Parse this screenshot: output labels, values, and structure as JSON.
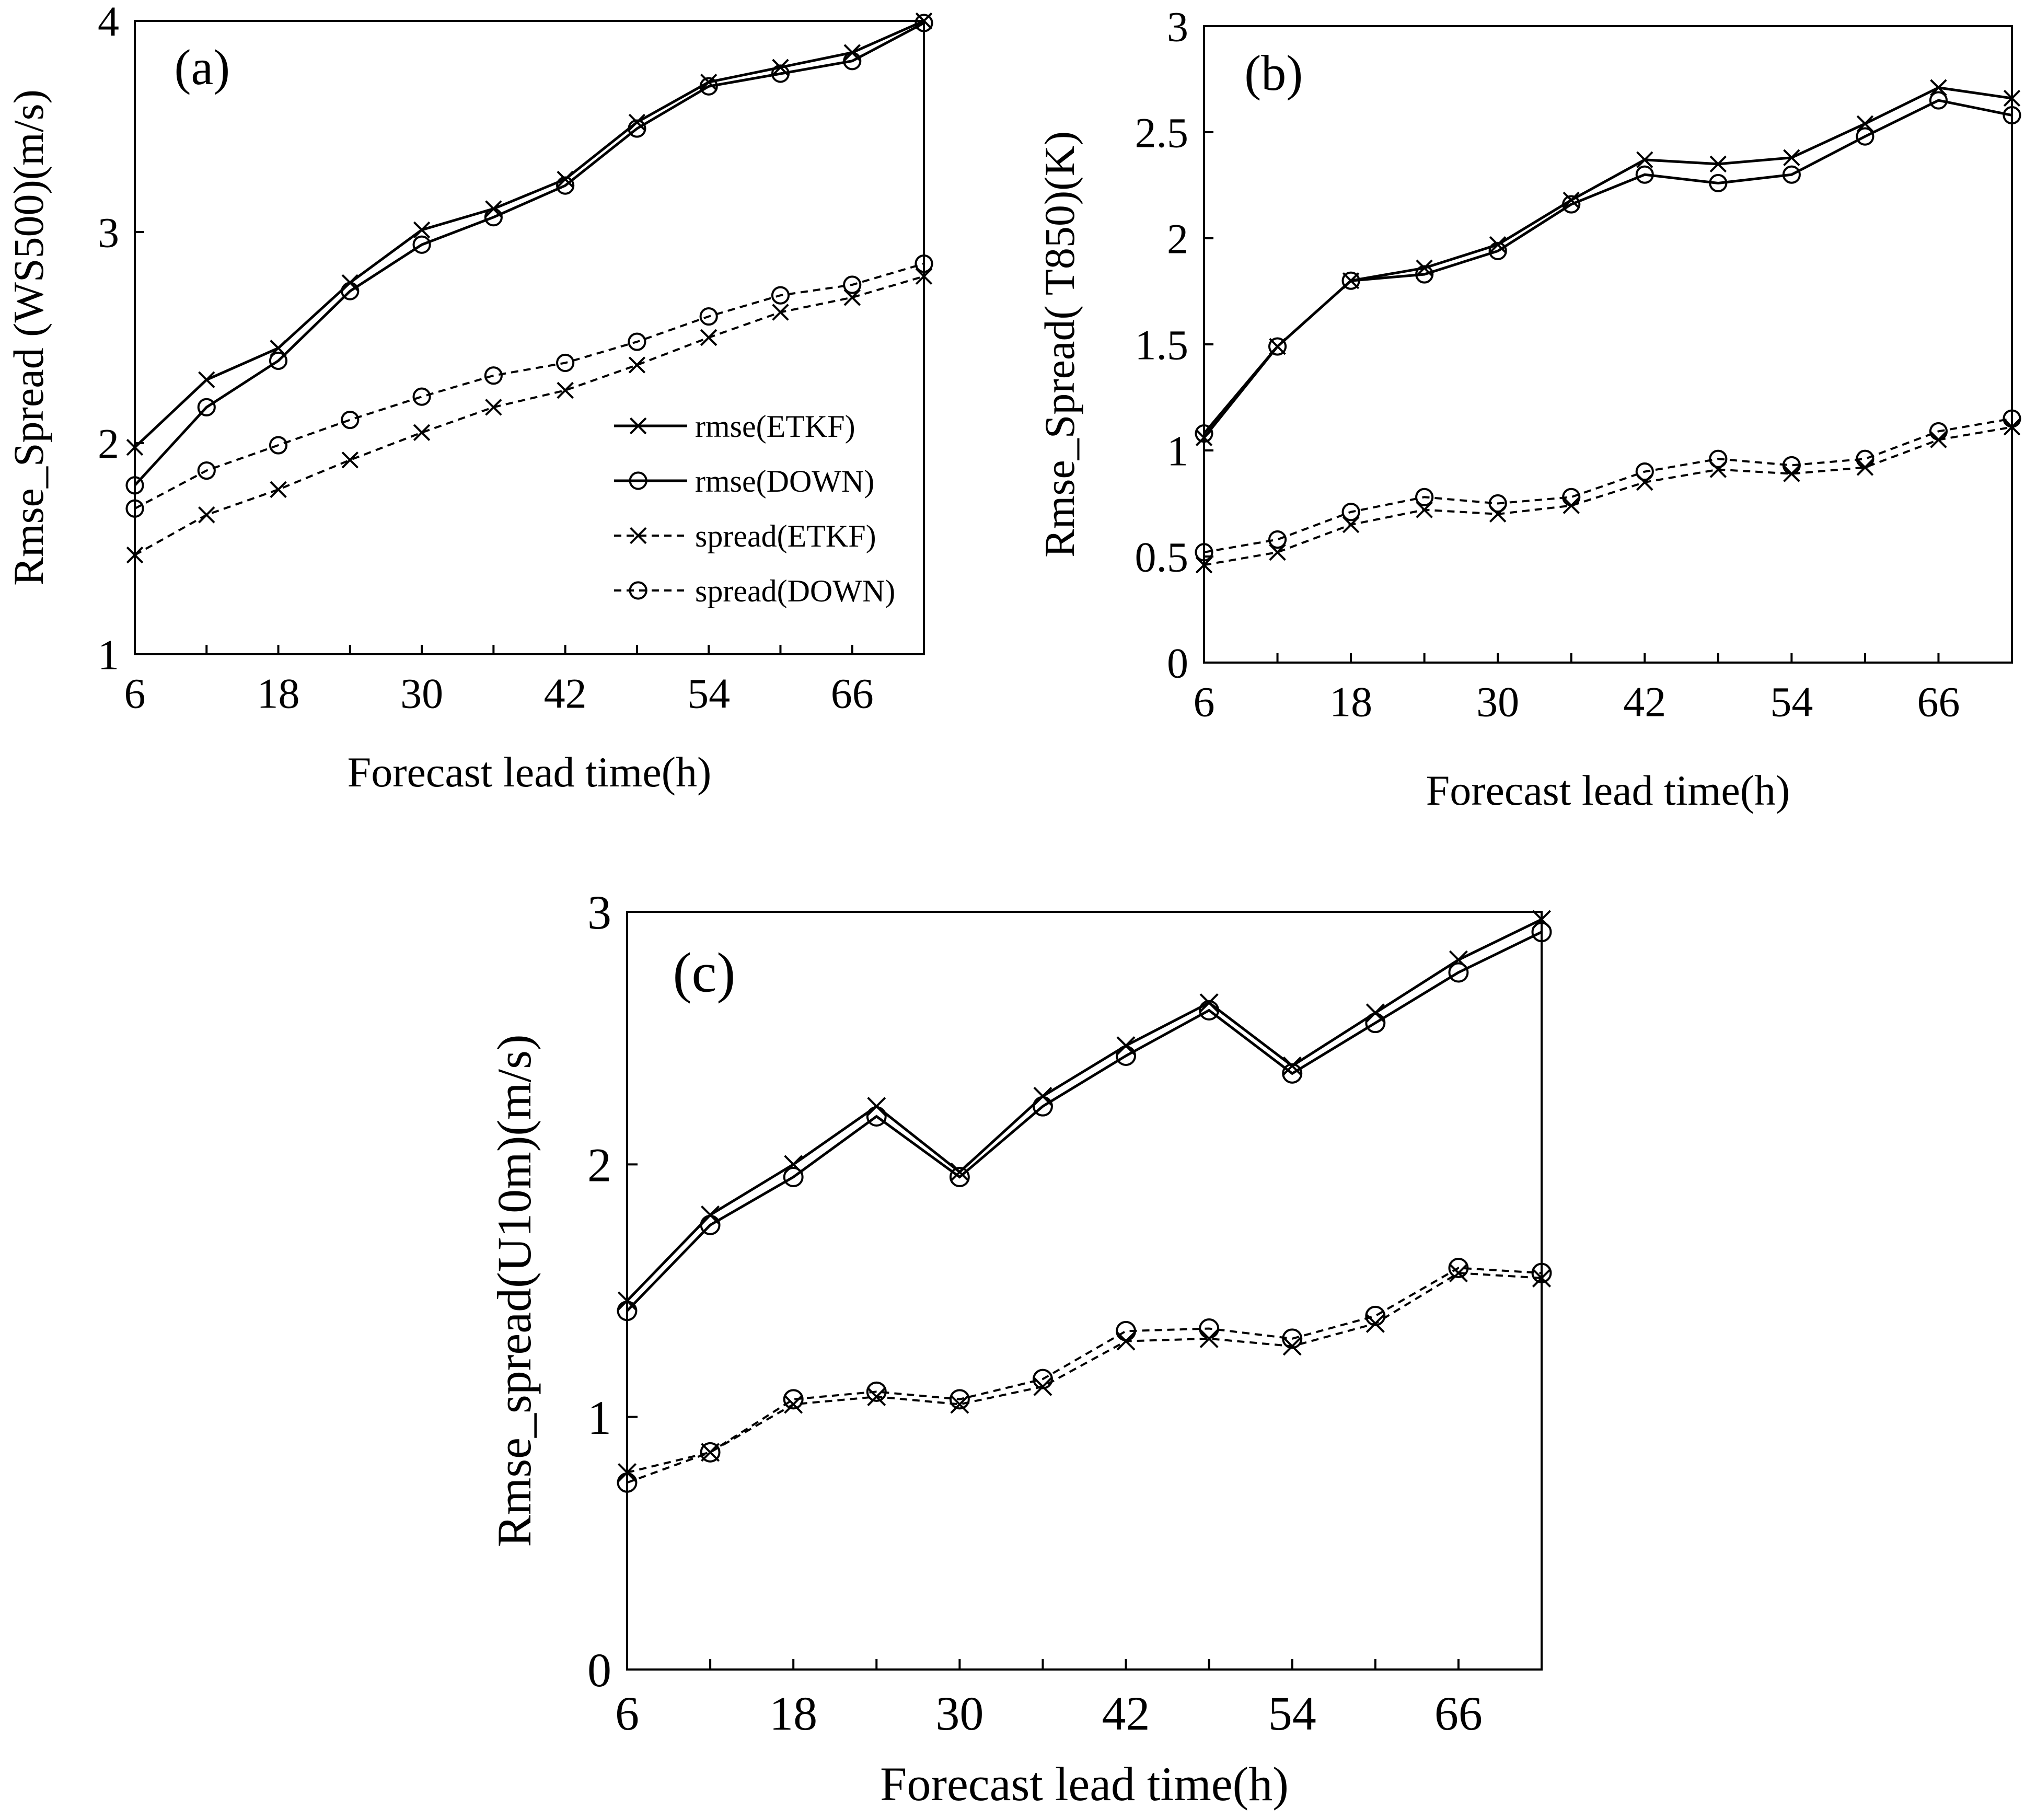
{
  "chart_data": [
    {
      "id": "a",
      "type": "line",
      "panel_label": "(a)",
      "ylabel": "Rmse_Spread (WS500)(m/s)",
      "xlabel": "Forecast lead time(h)",
      "ylim": [
        1,
        4
      ],
      "yticks": [
        1,
        2,
        3,
        4
      ],
      "xlim": [
        6,
        72
      ],
      "xticks": [
        6,
        12,
        18,
        24,
        30,
        36,
        42,
        48,
        54,
        60,
        66,
        72
      ],
      "xtick_labels": [
        "6",
        "18",
        "30",
        "42",
        "54",
        "66"
      ],
      "xtick_label_values": [
        6,
        18,
        30,
        42,
        54,
        66
      ],
      "legend_position": "center-right",
      "x": [
        6,
        12,
        18,
        24,
        30,
        36,
        42,
        48,
        54,
        60,
        66,
        72
      ],
      "series": [
        {
          "name": "rmse(ETKF)",
          "style": "solid",
          "marker": "x",
          "values": [
            1.98,
            2.3,
            2.45,
            2.76,
            3.01,
            3.11,
            3.25,
            3.52,
            3.71,
            3.78,
            3.85,
            4.0
          ]
        },
        {
          "name": "rmse(DOWN)",
          "style": "solid",
          "marker": "o",
          "values": [
            1.8,
            2.17,
            2.39,
            2.72,
            2.94,
            3.07,
            3.22,
            3.49,
            3.69,
            3.75,
            3.81,
            3.99
          ]
        },
        {
          "name": "spread(ETKF)",
          "style": "dashed",
          "marker": "x",
          "values": [
            1.47,
            1.66,
            1.78,
            1.92,
            2.05,
            2.17,
            2.25,
            2.37,
            2.5,
            2.62,
            2.69,
            2.79
          ]
        },
        {
          "name": "spread(DOWN)",
          "style": "dashed",
          "marker": "o",
          "values": [
            1.69,
            1.87,
            1.99,
            2.11,
            2.22,
            2.32,
            2.38,
            2.48,
            2.6,
            2.7,
            2.75,
            2.85
          ]
        }
      ]
    },
    {
      "id": "b",
      "type": "line",
      "panel_label": "(b)",
      "ylabel": "Rmse_Spread( T850)(K)",
      "xlabel": "Forecast lead time(h)",
      "ylim": [
        0,
        3
      ],
      "yticks": [
        0,
        0.5,
        1,
        1.5,
        2,
        2.5,
        3
      ],
      "xlim": [
        6,
        72
      ],
      "xticks": [
        6,
        12,
        18,
        24,
        30,
        36,
        42,
        48,
        54,
        60,
        66,
        72
      ],
      "xtick_labels": [
        "6",
        "18",
        "30",
        "42",
        "54",
        "66"
      ],
      "xtick_label_values": [
        6,
        18,
        30,
        42,
        54,
        66
      ],
      "x": [
        6,
        12,
        18,
        24,
        30,
        36,
        42,
        48,
        54,
        60,
        66,
        72
      ],
      "series": [
        {
          "name": "rmse(ETKF)",
          "style": "solid",
          "marker": "x",
          "values": [
            1.06,
            1.49,
            1.8,
            1.86,
            1.97,
            2.18,
            2.37,
            2.35,
            2.38,
            2.54,
            2.71,
            2.66
          ]
        },
        {
          "name": "rmse(DOWN)",
          "style": "solid",
          "marker": "o",
          "values": [
            1.08,
            1.49,
            1.8,
            1.83,
            1.94,
            2.16,
            2.3,
            2.26,
            2.3,
            2.48,
            2.65,
            2.58
          ]
        },
        {
          "name": "spread(ETKF)",
          "style": "dashed",
          "marker": "x",
          "values": [
            0.46,
            0.52,
            0.65,
            0.72,
            0.7,
            0.74,
            0.85,
            0.91,
            0.89,
            0.92,
            1.05,
            1.11
          ]
        },
        {
          "name": "spread(DOWN)",
          "style": "dashed",
          "marker": "o",
          "values": [
            0.52,
            0.58,
            0.71,
            0.78,
            0.75,
            0.78,
            0.9,
            0.96,
            0.93,
            0.96,
            1.09,
            1.15
          ]
        }
      ]
    },
    {
      "id": "c",
      "type": "line",
      "panel_label": "(c)",
      "ylabel": "Rmse_spread(U10m)(m/s)",
      "xlabel": "Forecast lead time(h)",
      "ylim": [
        0,
        3
      ],
      "yticks": [
        0,
        1,
        2,
        3
      ],
      "xlim": [
        6,
        72
      ],
      "xticks": [
        6,
        12,
        18,
        24,
        30,
        36,
        42,
        48,
        54,
        60,
        66,
        72
      ],
      "xtick_labels": [
        "6",
        "18",
        "30",
        "42",
        "54",
        "66"
      ],
      "xtick_label_values": [
        6,
        18,
        30,
        42,
        54,
        66
      ],
      "x": [
        6,
        12,
        18,
        24,
        30,
        36,
        42,
        48,
        54,
        60,
        66,
        72
      ],
      "series": [
        {
          "name": "rmse(ETKF)",
          "style": "solid",
          "marker": "x",
          "values": [
            1.46,
            1.8,
            2.0,
            2.23,
            1.97,
            2.27,
            2.47,
            2.64,
            2.39,
            2.6,
            2.81,
            2.97
          ]
        },
        {
          "name": "rmse(DOWN)",
          "style": "solid",
          "marker": "o",
          "values": [
            1.42,
            1.76,
            1.95,
            2.19,
            1.95,
            2.23,
            2.43,
            2.61,
            2.36,
            2.56,
            2.76,
            2.92
          ]
        },
        {
          "name": "spread(ETKF)",
          "style": "dashed",
          "marker": "x",
          "values": [
            0.78,
            0.86,
            1.05,
            1.08,
            1.05,
            1.12,
            1.3,
            1.31,
            1.28,
            1.37,
            1.57,
            1.55
          ]
        },
        {
          "name": "spread(DOWN)",
          "style": "dashed",
          "marker": "o",
          "values": [
            0.74,
            0.86,
            1.07,
            1.1,
            1.07,
            1.15,
            1.34,
            1.35,
            1.31,
            1.4,
            1.59,
            1.57
          ]
        }
      ]
    }
  ]
}
